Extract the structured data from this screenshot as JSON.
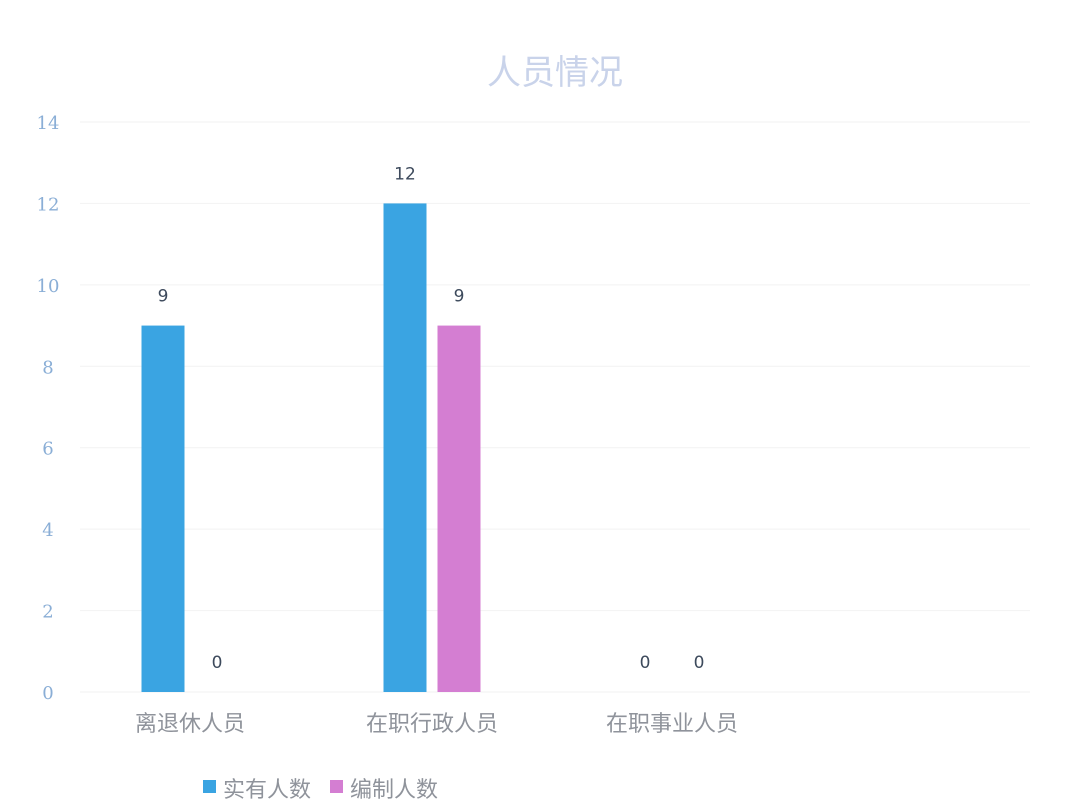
{
  "chart_data": {
    "type": "bar",
    "title": "人员情况",
    "categories": [
      "离退休人员",
      "在职行政人员",
      "在职事业人员"
    ],
    "series": [
      {
        "name": "实有人数",
        "values": [
          9,
          12,
          0
        ],
        "color": "#3aa4e2"
      },
      {
        "name": "编制人数",
        "values": [
          0,
          9,
          0
        ],
        "color": "#d47ed2"
      }
    ],
    "data_labels": [
      [
        "9",
        "12",
        "0"
      ],
      [
        "0",
        "9",
        "0"
      ]
    ],
    "yticks": [
      "0",
      "2",
      "4",
      "6",
      "8",
      "10",
      "12",
      "14"
    ],
    "ylim": [
      0,
      14
    ],
    "grid": true,
    "legend": "bottom-left",
    "colors": {
      "title": "#c9d3ea",
      "axis_text": "#8aaed6",
      "xtick_text": "#8f939b",
      "data_label": "#3d4a5c",
      "grid": "#f2f2f2"
    }
  }
}
